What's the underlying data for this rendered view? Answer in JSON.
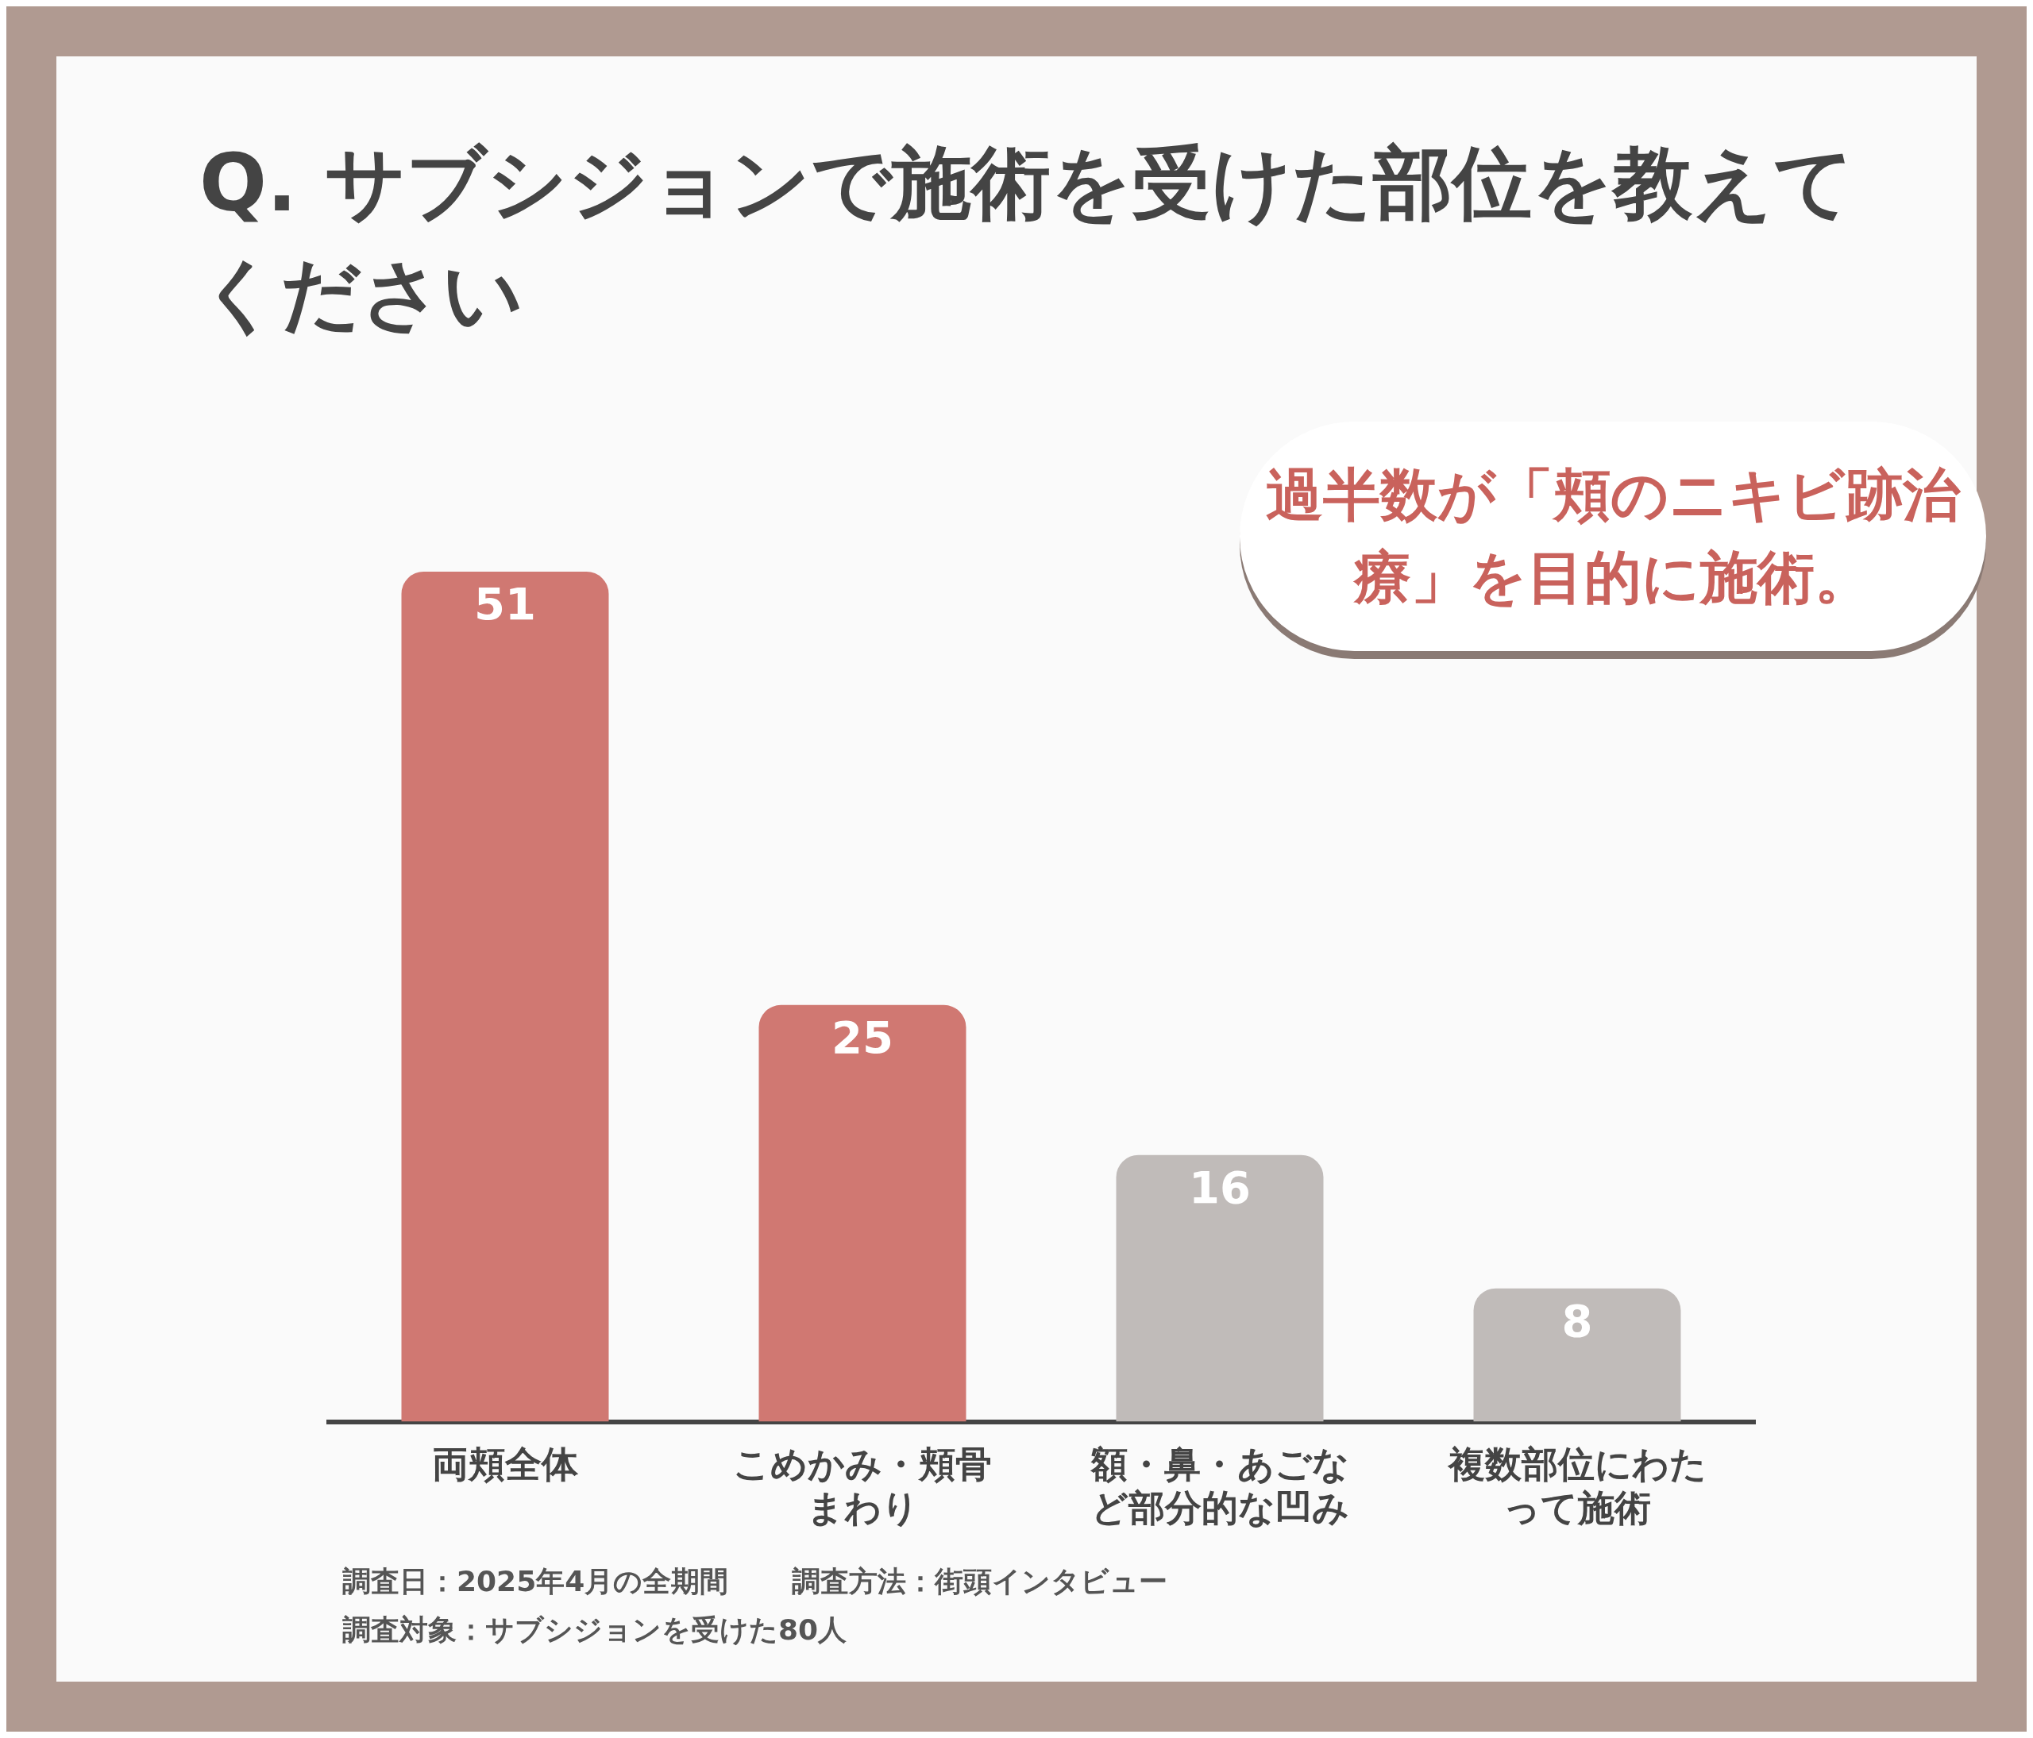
{
  "chart_data": {
    "type": "bar",
    "title": "Q. サブシジョンで施術を受けた部位を教えてください",
    "categories": [
      "両頬全体",
      "こめかみ・頬骨まわり",
      "額・鼻・あごなど部分的な凹み",
      "複数部位にわたって施術"
    ],
    "values": [
      51,
      25,
      16,
      8
    ],
    "colors": [
      "#d07872",
      "#d07872",
      "#c0bbb9",
      "#c0bbb9"
    ],
    "data_labels": true,
    "grid": false,
    "legend": false,
    "annotations": [
      "過半数が「頬のニキビ跡治療」を目的に施術。",
      "調査日：2025年4月の全期間",
      "調査方法：街頭インタビュー",
      "調査対象：サブシジョンを受けた80人"
    ]
  }
}
